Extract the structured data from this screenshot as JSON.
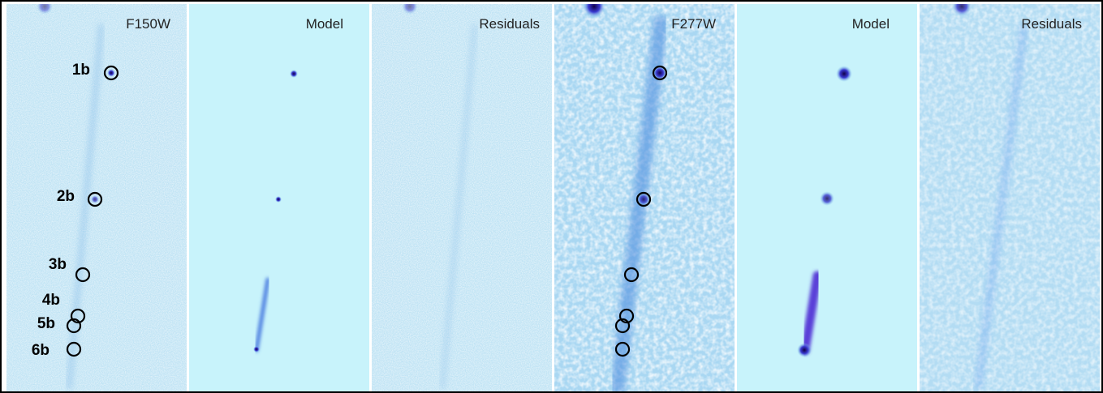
{
  "panels": [
    {
      "title": "F150W"
    },
    {
      "title": "Model"
    },
    {
      "title": "Residuals"
    },
    {
      "title": "F277W"
    },
    {
      "title": "Model"
    },
    {
      "title": "Residuals"
    }
  ],
  "source_labels": [
    "1b",
    "2b",
    "3b",
    "4b",
    "5b",
    "6b"
  ]
}
